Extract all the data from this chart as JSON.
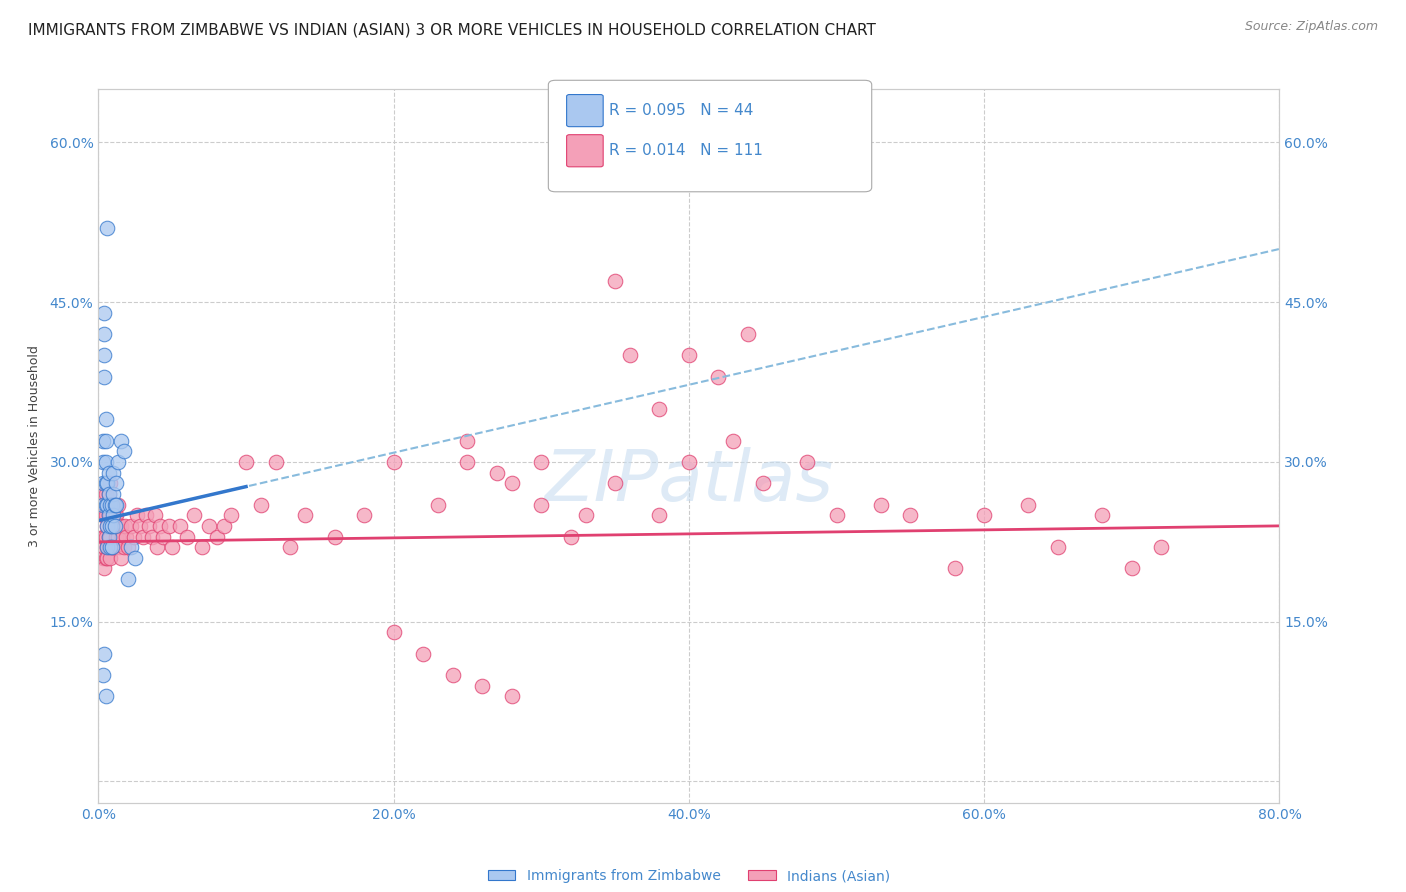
{
  "title": "IMMIGRANTS FROM ZIMBABWE VS INDIAN (ASIAN) 3 OR MORE VEHICLES IN HOUSEHOLD CORRELATION CHART",
  "source": "Source: ZipAtlas.com",
  "ylabel": "3 or more Vehicles in Household",
  "xlim": [
    0.0,
    0.8
  ],
  "ylim": [
    -0.02,
    0.65
  ],
  "xticks": [
    0.0,
    0.2,
    0.4,
    0.6,
    0.8
  ],
  "xtick_labels": [
    "0.0%",
    "20.0%",
    "40.0%",
    "60.0%",
    "80.0%"
  ],
  "yticks": [
    0.0,
    0.15,
    0.3,
    0.45,
    0.6
  ],
  "right_ytick_labels": [
    "15.0%",
    "30.0%",
    "45.0%",
    "60.0%"
  ],
  "right_yticks": [
    0.15,
    0.3,
    0.45,
    0.6
  ],
  "legend_r1": "R = 0.095",
  "legend_n1": "N = 44",
  "legend_r2": "R = 0.014",
  "legend_n2": "N = 111",
  "legend_label1": "Immigrants from Zimbabwe",
  "legend_label2": "Indians (Asian)",
  "scatter_zim_x": [
    0.003,
    0.003,
    0.003,
    0.003,
    0.004,
    0.004,
    0.004,
    0.004,
    0.005,
    0.005,
    0.005,
    0.005,
    0.005,
    0.006,
    0.006,
    0.006,
    0.006,
    0.007,
    0.007,
    0.007,
    0.007,
    0.008,
    0.008,
    0.008,
    0.009,
    0.009,
    0.009,
    0.01,
    0.01,
    0.01,
    0.011,
    0.011,
    0.012,
    0.012,
    0.013,
    0.015,
    0.017,
    0.02,
    0.022,
    0.025,
    0.003,
    0.004,
    0.005,
    0.006
  ],
  "scatter_zim_y": [
    0.26,
    0.28,
    0.3,
    0.32,
    0.4,
    0.42,
    0.44,
    0.38,
    0.26,
    0.28,
    0.3,
    0.32,
    0.34,
    0.22,
    0.24,
    0.26,
    0.28,
    0.23,
    0.25,
    0.27,
    0.29,
    0.22,
    0.24,
    0.26,
    0.22,
    0.24,
    0.26,
    0.25,
    0.27,
    0.29,
    0.24,
    0.26,
    0.26,
    0.28,
    0.3,
    0.32,
    0.31,
    0.19,
    0.22,
    0.21,
    0.1,
    0.12,
    0.08,
    0.52
  ],
  "scatter_ind_x": [
    0.003,
    0.003,
    0.003,
    0.004,
    0.004,
    0.004,
    0.004,
    0.004,
    0.005,
    0.005,
    0.005,
    0.005,
    0.006,
    0.006,
    0.006,
    0.006,
    0.007,
    0.007,
    0.007,
    0.007,
    0.008,
    0.008,
    0.008,
    0.008,
    0.009,
    0.009,
    0.009,
    0.01,
    0.01,
    0.01,
    0.011,
    0.011,
    0.012,
    0.012,
    0.013,
    0.013,
    0.014,
    0.014,
    0.015,
    0.015,
    0.016,
    0.017,
    0.018,
    0.019,
    0.02,
    0.022,
    0.024,
    0.026,
    0.028,
    0.03,
    0.032,
    0.034,
    0.036,
    0.038,
    0.04,
    0.042,
    0.044,
    0.048,
    0.05,
    0.055,
    0.06,
    0.065,
    0.07,
    0.075,
    0.08,
    0.085,
    0.09,
    0.1,
    0.11,
    0.12,
    0.13,
    0.14,
    0.16,
    0.18,
    0.2,
    0.23,
    0.25,
    0.28,
    0.3,
    0.33,
    0.35,
    0.38,
    0.4,
    0.43,
    0.45,
    0.48,
    0.5,
    0.53,
    0.55,
    0.58,
    0.6,
    0.63,
    0.65,
    0.68,
    0.7,
    0.72,
    0.35,
    0.36,
    0.38,
    0.25,
    0.27,
    0.3,
    0.32,
    0.2,
    0.22,
    0.24,
    0.26,
    0.28,
    0.4,
    0.42,
    0.44
  ],
  "scatter_ind_y": [
    0.21,
    0.23,
    0.25,
    0.2,
    0.22,
    0.23,
    0.25,
    0.27,
    0.21,
    0.23,
    0.25,
    0.27,
    0.21,
    0.22,
    0.24,
    0.26,
    0.22,
    0.23,
    0.25,
    0.27,
    0.21,
    0.23,
    0.25,
    0.28,
    0.22,
    0.24,
    0.26,
    0.22,
    0.24,
    0.26,
    0.22,
    0.25,
    0.23,
    0.25,
    0.23,
    0.26,
    0.22,
    0.24,
    0.21,
    0.24,
    0.23,
    0.22,
    0.24,
    0.23,
    0.22,
    0.24,
    0.23,
    0.25,
    0.24,
    0.23,
    0.25,
    0.24,
    0.23,
    0.25,
    0.22,
    0.24,
    0.23,
    0.24,
    0.22,
    0.24,
    0.23,
    0.25,
    0.22,
    0.24,
    0.23,
    0.24,
    0.25,
    0.3,
    0.26,
    0.3,
    0.22,
    0.25,
    0.23,
    0.25,
    0.3,
    0.26,
    0.3,
    0.28,
    0.3,
    0.25,
    0.28,
    0.25,
    0.3,
    0.32,
    0.28,
    0.3,
    0.25,
    0.26,
    0.25,
    0.2,
    0.25,
    0.26,
    0.22,
    0.25,
    0.2,
    0.22,
    0.47,
    0.4,
    0.35,
    0.32,
    0.29,
    0.26,
    0.23,
    0.14,
    0.12,
    0.1,
    0.09,
    0.08,
    0.4,
    0.38,
    0.42
  ],
  "zim_color": "#aac8f0",
  "ind_color": "#f4a0b8",
  "zim_line_color": "#3377cc",
  "ind_line_color": "#e04070",
  "zim_dash_color": "#88bbdd",
  "title_fontsize": 11,
  "axis_label_fontsize": 9,
  "tick_fontsize": 10,
  "tick_color": "#4488cc",
  "background_color": "#ffffff",
  "grid_color": "#cccccc",
  "watermark": "ZIPatlas",
  "watermark_color": "#c8ddf0"
}
